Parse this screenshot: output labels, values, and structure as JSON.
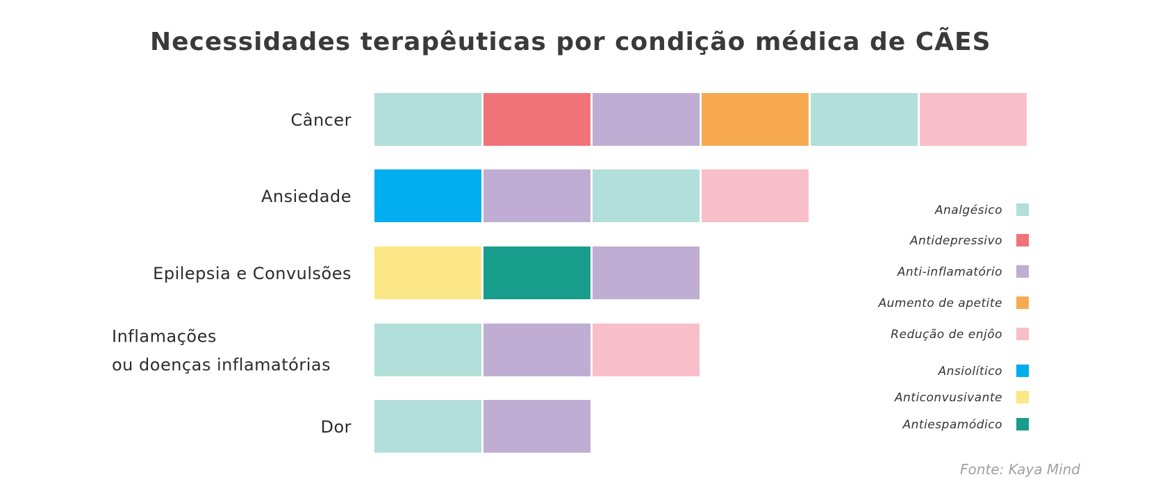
{
  "chart_data": {
    "type": "bar",
    "title": "Necessidades terapêuticas por condição médica de CÃES",
    "source": "Fonte: Kaya Mind",
    "categories": [
      [
        "Câncer"
      ],
      [
        "Ansiedade"
      ],
      [
        "Epilepsia e Convulsões"
      ],
      [
        "Inflamações",
        "ou doenças inflamatórias"
      ],
      [
        "Dor"
      ]
    ],
    "rows": [
      [
        "Analgésico",
        "Antidepressivo",
        "Anti-inflamatório",
        "Aumento de apetite",
        "Analgésico",
        "Redução de enjôo"
      ],
      [
        "Ansiolítico",
        "Anti-inflamatório",
        "Analgésico",
        "Redução de enjôo"
      ],
      [
        "Anticonvusivante",
        "Antiespamódico",
        "Anti-inflamatório"
      ],
      [
        "Analgésico",
        "Anti-inflamatório",
        "Redução de enjôo"
      ],
      [
        "Analgésico",
        "Anti-inflamatório"
      ]
    ],
    "values": [
      6,
      4,
      3,
      3,
      2
    ],
    "legend": [
      {
        "name": "Analgésico",
        "color": "#b2dfd9"
      },
      {
        "name": "Antidepressivo",
        "color": "#f07378"
      },
      {
        "name": "Anti-inflamatório",
        "color": "#bfadd3"
      },
      {
        "name": "Aumento de apetite",
        "color": "#f8aa50"
      },
      {
        "name": "Redução de enjôo",
        "color": "#f8bec9"
      },
      {
        "name": "Ansiolítico",
        "color": "#00aeef"
      },
      {
        "name": "Anticonvusivante",
        "color": "#fbe785"
      },
      {
        "name": "Antiespamódico",
        "color": "#189c8c"
      }
    ]
  }
}
